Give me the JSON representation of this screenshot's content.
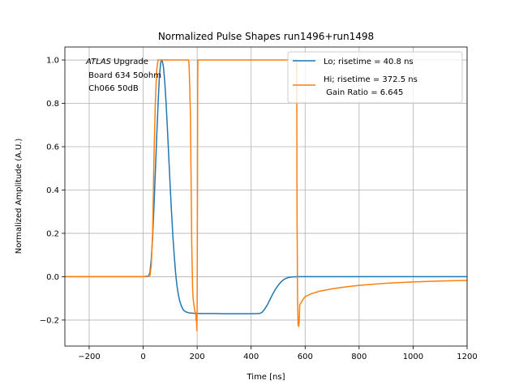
{
  "chart_data": {
    "type": "line",
    "title": "Normalized Pulse Shapes run1496+run1498",
    "xlabel": "Time [ns]",
    "ylabel": "Normalized Amplitude (A.U.)",
    "xlim": [
      -290,
      1200
    ],
    "ylim": [
      -0.32,
      1.06
    ],
    "xticks": [
      -200,
      0,
      200,
      400,
      600,
      800,
      1000,
      1200
    ],
    "xtick_labels": [
      "−200",
      "0",
      "200",
      "400",
      "600",
      "800",
      "1000",
      "1200"
    ],
    "yticks": [
      -0.2,
      0.0,
      0.2,
      0.4,
      0.6,
      0.8,
      1.0
    ],
    "ytick_labels": [
      "−0.2",
      "0.0",
      "0.2",
      "0.4",
      "0.6",
      "0.8",
      "1.0"
    ],
    "grid": true,
    "legend_position": "top-right",
    "annotation": {
      "italic_part": "ATLAS",
      "line1_rest": " Upgrade",
      "line2": " Board 634 50ohm",
      "line3": " Ch066 50dB"
    },
    "series": [
      {
        "name": "Lo; risetime = 40.8 ns",
        "legend_line2": "",
        "color": "#1f77b4",
        "x": [
          -290,
          -200,
          -100,
          0,
          20,
          25,
          30,
          35,
          40,
          45,
          50,
          55,
          60,
          65,
          70,
          75,
          80,
          85,
          90,
          95,
          100,
          105,
          110,
          115,
          120,
          125,
          130,
          135,
          140,
          145,
          150,
          155,
          160,
          165,
          170,
          180,
          190,
          200,
          220,
          260,
          300,
          350,
          400,
          430,
          440,
          450,
          460,
          470,
          480,
          490,
          500,
          510,
          520,
          530,
          540,
          550,
          560,
          575,
          600,
          700,
          800,
          900,
          1000,
          1100,
          1200
        ],
        "y": [
          0,
          0,
          0,
          0,
          0.002,
          0.02,
          0.08,
          0.18,
          0.32,
          0.48,
          0.64,
          0.79,
          0.92,
          0.99,
          1.0,
          0.97,
          0.9,
          0.8,
          0.68,
          0.55,
          0.42,
          0.3,
          0.19,
          0.1,
          0.02,
          -0.04,
          -0.08,
          -0.11,
          -0.13,
          -0.145,
          -0.155,
          -0.16,
          -0.163,
          -0.165,
          -0.167,
          -0.168,
          -0.169,
          -0.17,
          -0.17,
          -0.17,
          -0.171,
          -0.171,
          -0.171,
          -0.17,
          -0.165,
          -0.15,
          -0.13,
          -0.105,
          -0.08,
          -0.058,
          -0.04,
          -0.025,
          -0.014,
          -0.007,
          -0.003,
          -0.001,
          -0.0005,
          0,
          0,
          0,
          0,
          0,
          0,
          0,
          0
        ]
      },
      {
        "name": "Hi; risetime = 372.5 ns",
        "legend_line2": " Gain Ratio = 6.645",
        "color": "#ff7f0e",
        "x": [
          -290,
          -200,
          -100,
          0,
          25,
          30,
          35,
          38,
          40,
          45,
          50,
          55,
          60,
          70,
          80,
          100,
          150,
          168,
          170,
          172,
          175,
          178,
          180,
          183,
          185,
          188,
          190,
          192,
          195,
          196,
          198,
          199,
          200,
          201,
          202,
          203,
          205,
          300,
          400,
          500,
          560,
          568,
          569,
          570,
          572,
          574,
          576,
          578,
          580,
          585,
          590,
          595,
          600,
          620,
          650,
          700,
          750,
          800,
          900,
          1000,
          1100,
          1200
        ],
        "y": [
          0,
          0,
          0,
          0,
          0.005,
          0.05,
          0.2,
          0.4,
          0.55,
          0.8,
          0.95,
          1.0,
          1.0,
          1.0,
          1.0,
          1.0,
          1.0,
          1.0,
          0.98,
          0.9,
          0.75,
          0.4,
          0.15,
          -0.05,
          -0.1,
          -0.13,
          -0.15,
          -0.16,
          -0.17,
          -0.2,
          -0.21,
          -0.25,
          -0.15,
          0.3,
          0.9,
          1.0,
          1.0,
          1.0,
          1.0,
          1.0,
          1.0,
          1.0,
          0.95,
          0.3,
          -0.1,
          -0.22,
          -0.23,
          -0.21,
          -0.13,
          -0.12,
          -0.11,
          -0.1,
          -0.092,
          -0.08,
          -0.068,
          -0.056,
          -0.047,
          -0.04,
          -0.03,
          -0.024,
          -0.02,
          -0.017
        ]
      }
    ]
  }
}
